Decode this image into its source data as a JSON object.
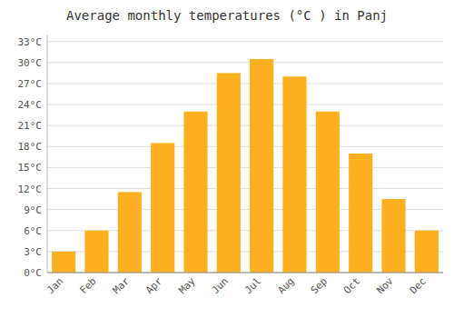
{
  "chart_data": {
    "type": "bar",
    "title": "Average monthly temperatures (°C ) in Panj",
    "categories": [
      "Jan",
      "Feb",
      "Mar",
      "Apr",
      "May",
      "Jun",
      "Jul",
      "Aug",
      "Sep",
      "Oct",
      "Nov",
      "Dec"
    ],
    "values": [
      3,
      6,
      11.5,
      18.5,
      23,
      28.5,
      30.5,
      28,
      23,
      17,
      10.5,
      6
    ],
    "color": "#FFB020",
    "ylim": [
      0,
      34
    ],
    "yticks": [
      {
        "value": 0,
        "label": "0°C"
      },
      {
        "value": 3,
        "label": "3°C"
      },
      {
        "value": 6,
        "label": "6°C"
      },
      {
        "value": 9,
        "label": "9°C"
      },
      {
        "value": 12,
        "label": "12°C"
      },
      {
        "value": 15,
        "label": "15°C"
      },
      {
        "value": 18,
        "label": "18°C"
      },
      {
        "value": 21,
        "label": "21°C"
      },
      {
        "value": 24,
        "label": "24°C"
      },
      {
        "value": 27,
        "label": "27°C"
      },
      {
        "value": 30,
        "label": "30°C"
      },
      {
        "value": 33,
        "label": "33°C"
      }
    ],
    "grid": true
  }
}
